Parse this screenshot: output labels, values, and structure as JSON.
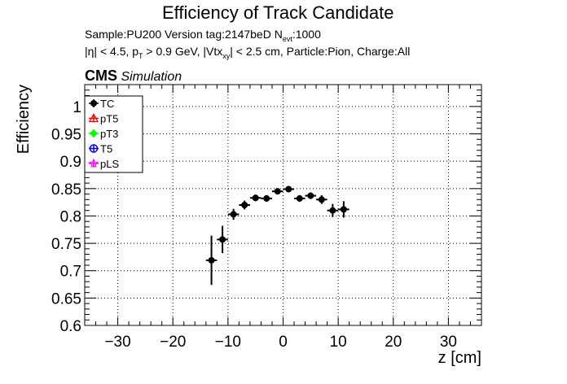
{
  "header": {
    "title": "Efficiency of Track Candidate",
    "sample_line": "Sample:PU200   Version tag:2147beD  N",
    "nevt_sub": "evt",
    "nevt_value": ":1000",
    "cuts_part1": "|η| < 4.5, p",
    "cuts_sub1": "T",
    "cuts_part2": " > 0.9 GeV, |Vtx",
    "cuts_sub2": "xy",
    "cuts_part3": "| < 2.5 cm, Particle:Pion, Charge:All",
    "cms_label": "CMS",
    "simulation_label": "Simulation"
  },
  "chart_data": {
    "type": "scatter",
    "title": "Efficiency of Track Candidate",
    "xlabel": "z [cm]",
    "ylabel": "Efficiency",
    "xlim": [
      -36,
      36
    ],
    "ylim": [
      0.6,
      1.04
    ],
    "xticks": [
      -30,
      -20,
      -10,
      0,
      10,
      20,
      30
    ],
    "xtick_labels": [
      "−30",
      "−20",
      "−10",
      "0",
      "10",
      "20",
      "30"
    ],
    "yticks": [
      0.6,
      0.65,
      0.7,
      0.75,
      0.8,
      0.85,
      0.9,
      0.95,
      1
    ],
    "ytick_labels": [
      "0.6",
      "0.65",
      "0.7",
      "0.75",
      "0.8",
      "0.85",
      "0.9",
      "0.95",
      "1"
    ],
    "grid": true,
    "legend_position": "top-left",
    "series": [
      {
        "name": "TC",
        "color": "#000000",
        "marker": "filled-circle",
        "x": [
          -13,
          -11,
          -9,
          -7,
          -5,
          -3,
          -1,
          1,
          3,
          5,
          7,
          9,
          11
        ],
        "y": [
          0.719,
          0.757,
          0.803,
          0.82,
          0.833,
          0.832,
          0.845,
          0.849,
          0.832,
          0.837,
          0.83,
          0.81,
          0.812
        ],
        "y_err": [
          0.045,
          0.025,
          0.01,
          0.008,
          0.006,
          0.006,
          0.005,
          0.005,
          0.006,
          0.006,
          0.008,
          0.012,
          0.015
        ],
        "x_err": 1
      },
      {
        "name": "pT5",
        "color": "#ff0000",
        "marker": "open-triangle",
        "x": [],
        "y": []
      },
      {
        "name": "pT3",
        "color": "#00ff00",
        "marker": "filled-diamond",
        "x": [],
        "y": []
      },
      {
        "name": "T5",
        "color": "#0000ff",
        "marker": "open-circle",
        "x": [],
        "y": []
      },
      {
        "name": "pLS",
        "color": "#ff00ff",
        "marker": "open-star",
        "x": [],
        "y": []
      }
    ]
  }
}
